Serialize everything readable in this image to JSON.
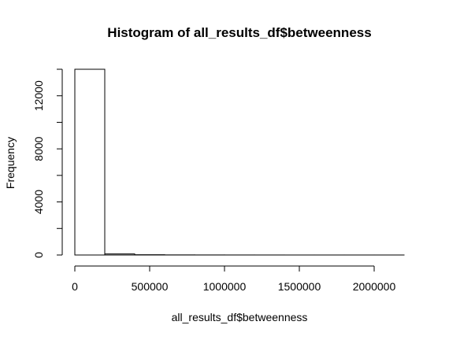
{
  "chart_data": {
    "type": "bar",
    "title": "Histogram of all_results_df$betweenness",
    "xlabel": "all_results_df$betweenness",
    "ylabel": "Frequency",
    "bin_edges": [
      0,
      200000,
      400000,
      600000,
      800000,
      1000000,
      1200000,
      1400000,
      1600000,
      1800000,
      2000000,
      2200000
    ],
    "values": [
      14000,
      80,
      20,
      8,
      5,
      3,
      2,
      1,
      1,
      1,
      1
    ],
    "xlim": [
      0,
      2200000
    ],
    "ylim": [
      0,
      14000
    ],
    "x_ticks": [
      0,
      500000,
      1000000,
      1500000,
      2000000
    ],
    "x_tick_labels": [
      "0",
      "500000",
      "1000000",
      "1500000",
      "2000000"
    ],
    "y_ticks": [
      0,
      2000,
      4000,
      6000,
      8000,
      10000,
      12000,
      14000
    ],
    "y_tick_labels": [
      "0",
      "",
      "4000",
      "",
      "8000",
      "",
      "12000",
      ""
    ],
    "grid": false,
    "bar_fill": "#ffffff",
    "bar_stroke": "#000000"
  }
}
